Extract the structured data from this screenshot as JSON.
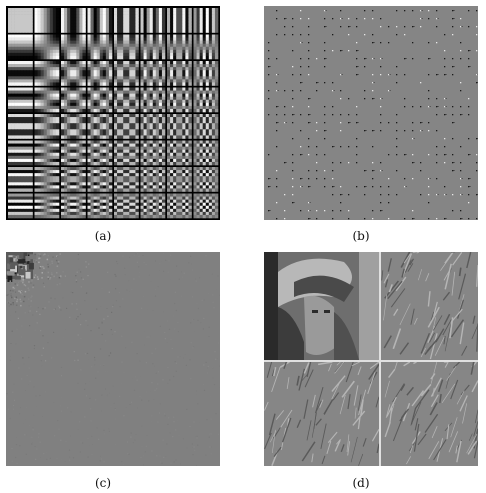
{
  "figure": {
    "panels": [
      {
        "id": "a",
        "caption": "(a)"
      },
      {
        "id": "b",
        "caption": "(b)"
      },
      {
        "id": "c",
        "caption": "(c)"
      },
      {
        "id": "d",
        "caption": "(d)"
      }
    ]
  },
  "colors": {
    "background": "#ffffff",
    "neutral_gray": "#7f7f7f",
    "grid_border": "#000000"
  }
}
